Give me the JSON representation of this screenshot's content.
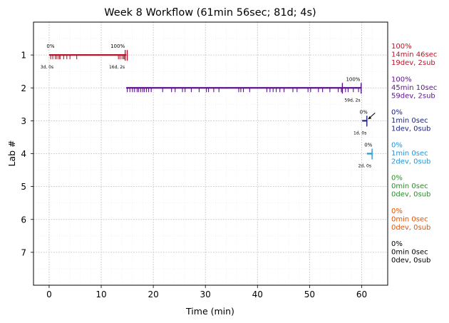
{
  "chart_data": {
    "type": "timeline",
    "title": "Week 8 Workflow (61min 56sec; 81d; 4s)",
    "xlabel": "Time (min)",
    "ylabel": "Lab #",
    "xlim": [
      -3,
      65
    ],
    "ylim": [
      8,
      0
    ],
    "xticks": [
      0,
      10,
      20,
      30,
      40,
      50,
      60
    ],
    "yticks": [
      1,
      2,
      3,
      4,
      5,
      6,
      7
    ],
    "grid": true,
    "labs": [
      {
        "lab": 1,
        "color": "#b2182b",
        "start": 0,
        "end": 14.8,
        "start_label": "0%",
        "end_label": "100%",
        "start_note": "3d, 0s",
        "end_note": "16d, 2s",
        "ticks": [
          0.3,
          0.7,
          1.2,
          1.5,
          1.9,
          2.1,
          2.8,
          3.4,
          4.0,
          5.3,
          13.3,
          13.6,
          14.0,
          14.3,
          14.5
        ],
        "submits": [
          14.6,
          15.0
        ],
        "summary": [
          "100%",
          "14min 46sec",
          "19dev, 2sub"
        ]
      },
      {
        "lab": 2,
        "color": "#5b138c",
        "start": 14.8,
        "end": 60,
        "start_label": "",
        "end_label": "100%",
        "start_note": "",
        "end_note": "59d, 2s",
        "ticks": [
          15.0,
          15.5,
          16.0,
          16.4,
          16.9,
          17.2,
          17.6,
          18.0,
          18.3,
          18.7,
          19.1,
          19.6,
          21.8,
          23.5,
          24.2,
          25.6,
          26.1,
          27.3,
          28.8,
          30.2,
          30.6,
          31.6,
          32.6,
          36.4,
          36.8,
          37.3,
          38.5,
          41.8,
          42.4,
          43.0,
          43.6,
          44.3,
          45.1,
          46.8,
          47.6,
          49.7,
          50.2,
          51.7,
          52.5,
          53.9,
          55.5,
          56.1,
          56.9,
          57.4,
          58.4,
          59.4
        ],
        "submits": [
          56.3,
          59.9
        ],
        "summary": [
          "100%",
          "45min 10sec",
          "59dev, 2sub"
        ]
      },
      {
        "lab": 3,
        "color": "#1a237e",
        "start": 60.1,
        "end": 61.0,
        "start_label": "0%",
        "end_label": "",
        "start_note": "1d, 0s",
        "end_note": "",
        "ticks": [],
        "submits": [
          61.0
        ],
        "summary": [
          "0%",
          "1min 0sec",
          "1dev, 0sub"
        ]
      },
      {
        "lab": 4,
        "color": "#2196d8",
        "start": 61.0,
        "end": 62.0,
        "start_label": "0%",
        "end_label": "",
        "start_note": "2d, 0s",
        "end_note": "",
        "ticks": [],
        "submits": [
          62.0
        ],
        "summary": [
          "0%",
          "1min 0sec",
          "2dev, 0sub"
        ]
      },
      {
        "lab": 5,
        "color": "#2e8b2e",
        "summary": [
          "0%",
          "0min 0sec",
          "0dev, 0sub"
        ]
      },
      {
        "lab": 6,
        "color": "#e65100",
        "summary": [
          "0%",
          "0min 0sec",
          "0dev, 0sub"
        ]
      },
      {
        "lab": 7,
        "color": "#000000",
        "summary": [
          "0%",
          "0min 0sec",
          "0dev, 0sub"
        ]
      }
    ],
    "annotation": {
      "type": "arrow",
      "lab": 3,
      "x": 61.2
    }
  }
}
